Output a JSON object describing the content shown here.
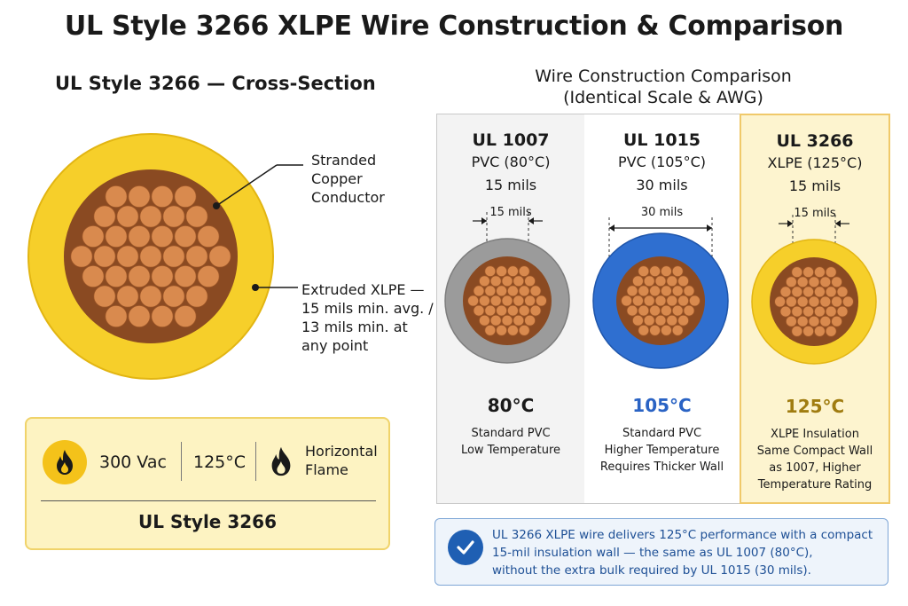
{
  "title": "UL Style 3266 XLPE Wire Construction & Comparison",
  "cross_section": {
    "heading": "UL Style 3266 — Cross-Section",
    "callout_stranded": [
      "Stranded",
      "Copper",
      "Conductor"
    ],
    "callout_xlpe": [
      "Extruded XLPE —",
      "15 mils min. avg. /",
      "13 mils min. at",
      "any point"
    ]
  },
  "info_box": {
    "voltage": "300 Vac",
    "temperature": "125°C",
    "flame": [
      "Horizontal",
      "Flame"
    ],
    "name": "UL Style 3266",
    "icons": [
      "flame-icon",
      "flame-icon"
    ]
  },
  "comparison": {
    "heading": [
      "Wire Construction Comparison",
      "(Identical Scale & AWG)"
    ],
    "panels": [
      {
        "name": "UL 1007",
        "material": "PVC (80°C)",
        "thickness": "15 mils",
        "dimension_label": "15 mils",
        "temperature": "80°C",
        "description": [
          "Standard PVC",
          "Low Temperature"
        ],
        "insulation_color": "#9b9b9b",
        "temp_color": "#1a1a1a"
      },
      {
        "name": "UL 1015",
        "material": "PVC (105°C)",
        "thickness": "30 mils",
        "dimension_label": "30 mils",
        "temperature": "105°C",
        "description": [
          "Standard PVC",
          "Higher Temperature",
          "Requires Thicker Wall"
        ],
        "insulation_color": "#2f6fd0",
        "temp_color": "#2a63c4"
      },
      {
        "name": "UL 3266",
        "material": "XLPE (125°C)",
        "thickness": "15 mils",
        "dimension_label": "15 mils",
        "temperature": "125°C",
        "description": [
          "XLPE Insulation",
          "Same Compact Wall",
          "as 1007, Higher",
          "Temperature Rating"
        ],
        "insulation_color": "#f6cf2a",
        "temp_color": "#a07c10"
      }
    ]
  },
  "summary": {
    "text": [
      "UL 3266 XLPE wire delivers 125°C performance with a compact",
      "15-mil insulation wall — the same as UL 1007 (80°C),",
      "without the extra bulk required by UL 1015 (30 mils)."
    ],
    "icon": "check-icon"
  },
  "colors": {
    "copper": "#d98a4e",
    "xlpe_yellow": "#f6cf2a",
    "accent_blue": "#1f5fb3"
  }
}
